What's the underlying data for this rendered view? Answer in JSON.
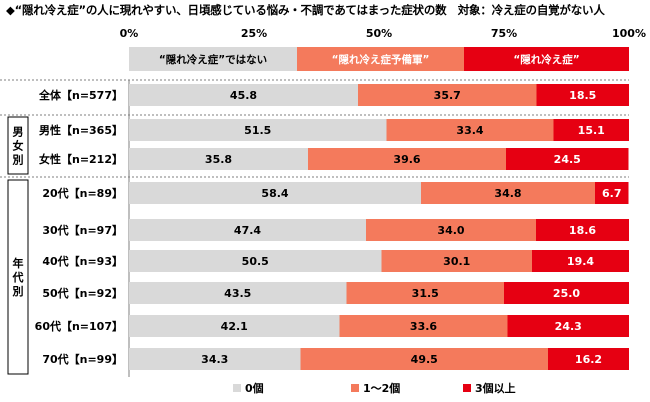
{
  "title": "◆“隠れ冷え症”の人に現れやすい、日頃感じている悩み・不調であてはまった症状の数　対象：冷え症の自覚がない人",
  "chart_data": {
    "type": "bar",
    "stacked": true,
    "orientation": "horizontal",
    "xlim": [
      0,
      100
    ],
    "x_tick_labels": [
      "0%",
      "25%",
      "50%",
      "75%",
      "100%"
    ],
    "header_segments": [
      {
        "label": "“隠れ冷え症”ではない",
        "value": 33.6
      },
      {
        "label": "“隠れ冷え症予備軍”",
        "value": 33.4
      },
      {
        "label": "“隠れ冷え症”",
        "value": 33.0
      }
    ],
    "groups": [
      {
        "label": "",
        "rows": [
          0
        ]
      },
      {
        "label": "男女別",
        "rows": [
          1,
          2
        ]
      },
      {
        "label": "年代別",
        "rows": [
          3,
          4,
          5,
          6,
          7,
          8
        ]
      }
    ],
    "categories": [
      "全体【n=577】",
      "男性【n=365】",
      "女性【n=212】",
      "20代【n=89】",
      "30代【n=97】",
      "40代【n=93】",
      "50代【n=92】",
      "60代【n=107】",
      "70代【n=99】"
    ],
    "series": [
      {
        "name": "0個",
        "color": "#d9d9d9",
        "values": [
          45.8,
          51.5,
          35.8,
          58.4,
          47.4,
          50.5,
          43.5,
          42.1,
          34.3
        ]
      },
      {
        "name": "1～2個",
        "color": "#f47a5c",
        "values": [
          35.7,
          33.4,
          39.6,
          34.8,
          34.0,
          30.1,
          31.5,
          33.6,
          49.5
        ]
      },
      {
        "name": "3個以上",
        "color": "#e60012",
        "values": [
          18.5,
          15.1,
          24.5,
          6.7,
          18.6,
          19.4,
          25.0,
          24.3,
          16.2
        ]
      }
    ],
    "legend_position": "bottom",
    "header_colors": [
      "#d9d9d9",
      "#f47a5c",
      "#e60012"
    ]
  }
}
